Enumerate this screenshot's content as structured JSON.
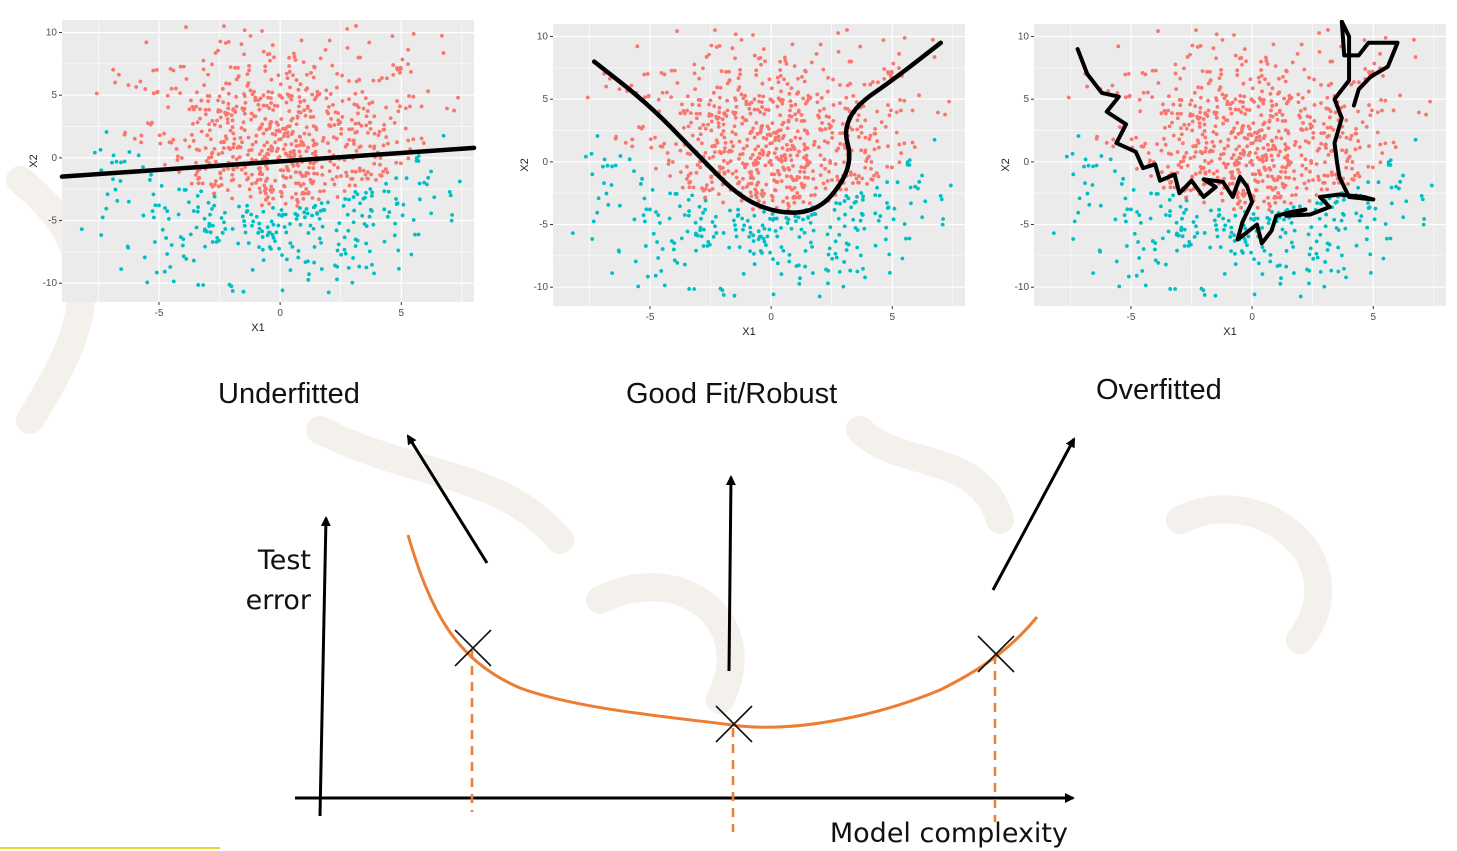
{
  "labels": {
    "underfitted": "Underfitted",
    "good_fit": "Good Fit/Robust",
    "overfitted": "Overfitted"
  },
  "curve_axes": {
    "y_label_line1": "Test",
    "y_label_line2": "error",
    "x_label": "Model complexity"
  },
  "colors": {
    "class_a": "#f8766d",
    "class_b": "#00bfc4",
    "panel_bg": "#ebebeb",
    "grid": "#ffffff",
    "error_curve": "#ed7d31",
    "boundary": "#000000"
  },
  "chart_data": [
    {
      "type": "scatter",
      "title": "",
      "xlabel": "X1",
      "ylabel": "X2",
      "xlim": [
        -9,
        8
      ],
      "ylim": [
        -11.5,
        11
      ],
      "xticks": [
        -5,
        0,
        5
      ],
      "yticks": [
        -10,
        -5,
        0,
        5,
        10
      ],
      "tick_labels_x": [
        "-5",
        "0",
        "5"
      ],
      "tick_labels_y": [
        "-10",
        "-5",
        "0",
        "5",
        "10"
      ],
      "series": [
        {
          "values": []
        },
        {
          "values": []
        }
      ],
      "boundary": "linear",
      "boundary_points": [
        [
          -9,
          -1.5
        ],
        [
          8,
          0.8
        ]
      ]
    },
    {
      "type": "scatter",
      "title": "",
      "xlabel": "X1",
      "ylabel": "X2",
      "xlim": [
        -9,
        8
      ],
      "ylim": [
        -11.5,
        11
      ],
      "xticks": [
        -5,
        0,
        5
      ],
      "yticks": [
        -10,
        -5,
        0,
        5,
        10
      ],
      "tick_labels_x": [
        "-5",
        "0",
        "5"
      ],
      "tick_labels_y": [
        "-10",
        "-5",
        "0",
        "5",
        "10"
      ],
      "series": [
        {
          "values": []
        },
        {
          "values": []
        }
      ],
      "boundary": "smooth",
      "boundary_points": [
        [
          -7.3,
          8
        ],
        [
          -5,
          4.5
        ],
        [
          -3,
          0.5
        ],
        [
          -1.2,
          -3
        ],
        [
          0.5,
          -4.2
        ],
        [
          2,
          -3.8
        ],
        [
          3,
          -1.5
        ],
        [
          3.3,
          0.5
        ],
        [
          3,
          2.5
        ],
        [
          3.5,
          4.5
        ],
        [
          5,
          6.5
        ],
        [
          7,
          9.5
        ]
      ]
    },
    {
      "type": "scatter",
      "title": "",
      "xlabel": "X1",
      "ylabel": "X2",
      "xlim": [
        -9,
        8
      ],
      "ylim": [
        -11.5,
        11
      ],
      "xticks": [
        -5,
        0,
        5
      ],
      "yticks": [
        -10,
        -5,
        0,
        5,
        10
      ],
      "tick_labels_x": [
        "-5",
        "0",
        "5"
      ],
      "tick_labels_y": [
        "-10",
        "-5",
        "0",
        "5",
        "10"
      ],
      "series": [
        {
          "values": []
        },
        {
          "values": []
        }
      ],
      "boundary": "jagged",
      "boundary_points": [
        [
          -7.2,
          9
        ],
        [
          -6.8,
          7
        ],
        [
          -6.2,
          5.5
        ],
        [
          -5.5,
          5.2
        ],
        [
          -6,
          4
        ],
        [
          -5.2,
          3
        ],
        [
          -5.6,
          1.5
        ],
        [
          -4.8,
          0.8
        ],
        [
          -4.5,
          -0.5
        ],
        [
          -4,
          -0.2
        ],
        [
          -3.8,
          -1.5
        ],
        [
          -3.2,
          -1
        ],
        [
          -3,
          -2.5
        ],
        [
          -2.5,
          -1.5
        ],
        [
          -2,
          -2.8
        ],
        [
          -1.5,
          -2
        ],
        [
          -2,
          -1.4
        ],
        [
          -1.2,
          -1.6
        ],
        [
          -0.8,
          -2.8
        ],
        [
          -0.5,
          -1.2
        ],
        [
          -0.2,
          -2
        ],
        [
          0,
          -3.2
        ],
        [
          -0.4,
          -4.8
        ],
        [
          -0.6,
          -6.2
        ],
        [
          0.2,
          -5
        ],
        [
          0.4,
          -6.5
        ],
        [
          0.8,
          -5.5
        ],
        [
          1,
          -4.3
        ],
        [
          1.6,
          -4
        ],
        [
          2.2,
          -3.8
        ],
        [
          1.4,
          -4.3
        ],
        [
          2.4,
          -4.2
        ],
        [
          3.2,
          -3.6
        ],
        [
          2.8,
          -2.8
        ],
        [
          3.6,
          -2.6
        ],
        [
          4.6,
          -2.8
        ],
        [
          5,
          -3
        ],
        [
          4,
          -2.8
        ],
        [
          3.6,
          -1.2
        ],
        [
          3.5,
          0
        ],
        [
          3.4,
          1.5
        ],
        [
          3.7,
          3.5
        ],
        [
          3.4,
          5
        ],
        [
          4,
          6.5
        ],
        [
          4,
          8.5
        ],
        [
          4,
          10
        ],
        [
          3.7,
          11.2
        ],
        [
          3.8,
          8.5
        ],
        [
          4.4,
          8.5
        ],
        [
          4.8,
          9.5
        ],
        [
          6,
          9.5
        ],
        [
          5.6,
          7.6
        ],
        [
          4.9,
          6.8
        ],
        [
          4.4,
          5.8
        ],
        [
          4.2,
          4.5
        ]
      ]
    },
    {
      "type": "line",
      "title": "",
      "xlabel": "Model complexity",
      "ylabel": "Test error",
      "xlim": [
        0,
        10
      ],
      "ylim": [
        0,
        10
      ],
      "series": [
        {
          "values": [
            [
              1.0,
              9.6
            ],
            [
              1.6,
              6.8
            ],
            [
              2.5,
              4.6
            ],
            [
              4.0,
              3.6
            ],
            [
              5.0,
              2.8
            ],
            [
              6.0,
              3.0
            ],
            [
              7.0,
              3.8
            ],
            [
              8.5,
              6.0
            ],
            [
              9.0,
              7.0
            ]
          ]
        }
      ],
      "marked_points": [
        [
          1.89,
          5.6
        ],
        [
          5.0,
          2.8
        ],
        [
          8.62,
          5.2
        ]
      ]
    }
  ]
}
